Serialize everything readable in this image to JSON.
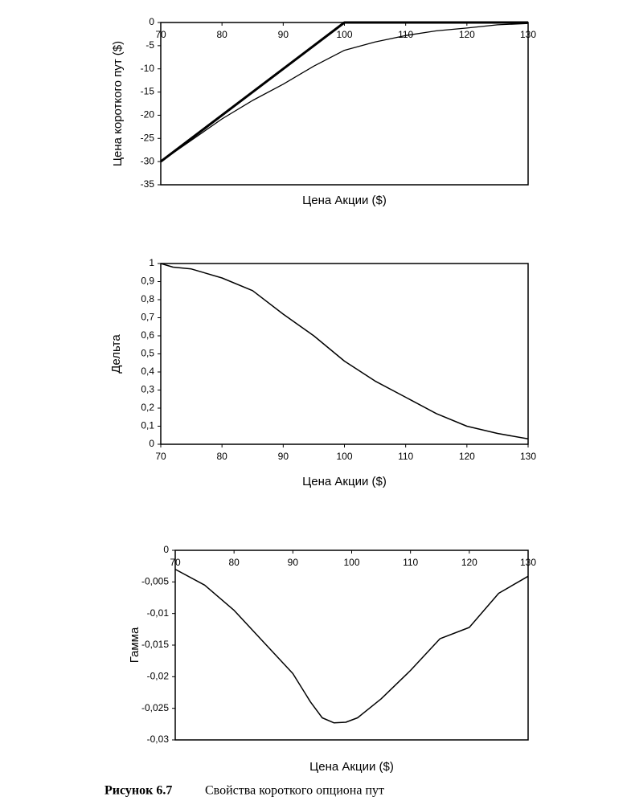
{
  "chart_data": [
    {
      "type": "line",
      "ylabel": "Цена короткого пут ($)",
      "xlabel": "Цена Акции ($)",
      "xlim": [
        70,
        130
      ],
      "xticks": [
        70,
        80,
        90,
        100,
        110,
        120,
        130
      ],
      "xtick_side": "top",
      "ylim": [
        -35,
        0
      ],
      "yticks": [
        0,
        -5,
        -10,
        -15,
        -20,
        -25,
        -30,
        -35
      ],
      "series": [
        {
          "color": "#000000",
          "line_width": 3,
          "x": [
            70,
            100,
            130
          ],
          "values": [
            -30,
            0,
            0
          ]
        },
        {
          "color": "#000000",
          "line_width": 1.3,
          "x": [
            70,
            80,
            85,
            90,
            95,
            100,
            105,
            110,
            115,
            120,
            125,
            130
          ],
          "values": [
            -30,
            -20.8,
            -16.8,
            -13.3,
            -9.4,
            -6,
            -4.2,
            -2.8,
            -1.8,
            -1.2,
            -0.5,
            -0.2
          ]
        }
      ]
    },
    {
      "type": "line",
      "ylabel": "Дельта",
      "xlabel": "Цена Акции ($)",
      "xlim": [
        70,
        130
      ],
      "xticks": [
        70,
        80,
        90,
        100,
        110,
        120,
        130
      ],
      "xtick_side": "bottom",
      "ylim": [
        0,
        1
      ],
      "yticks": [
        0,
        {
          "value": 0.1,
          "label": "0,1"
        },
        {
          "value": 0.2,
          "label": "0,2"
        },
        {
          "value": 0.3,
          "label": "0,3"
        },
        {
          "value": 0.4,
          "label": "0,4"
        },
        {
          "value": 0.5,
          "label": "0,5"
        },
        {
          "value": 0.6,
          "label": "0,6"
        },
        {
          "value": 0.7,
          "label": "0,7"
        },
        {
          "value": 0.8,
          "label": "0,8"
        },
        {
          "value": 0.9,
          "label": "0,9"
        },
        1
      ],
      "series": [
        {
          "color": "#000000",
          "line_width": 1.5,
          "x": [
            70,
            72,
            75,
            80,
            85,
            90,
            95,
            100,
            105,
            110,
            115,
            120,
            125,
            130
          ],
          "values": [
            1,
            0.98,
            0.97,
            0.92,
            0.85,
            0.72,
            0.6,
            0.46,
            0.35,
            0.26,
            0.17,
            0.1,
            0.06,
            0.03
          ]
        }
      ]
    },
    {
      "type": "line",
      "ylabel": "Гамма",
      "xlabel": "Цена Акции ($)",
      "xlim": [
        70,
        130
      ],
      "xticks": [
        70,
        80,
        90,
        100,
        110,
        120,
        130
      ],
      "xtick_side": "top",
      "ylim": [
        -0.03,
        0
      ],
      "yticks": [
        0,
        {
          "value": -0.005,
          "label": "-0,005"
        },
        {
          "value": -0.01,
          "label": "-0,01"
        },
        {
          "value": -0.015,
          "label": "-0,015"
        },
        {
          "value": -0.02,
          "label": "-0,02"
        },
        {
          "value": -0.025,
          "label": "-0,025"
        },
        {
          "value": -0.03,
          "label": "-0,03"
        }
      ],
      "series": [
        {
          "color": "#000000",
          "line_width": 1.5,
          "x": [
            70,
            75,
            80,
            85,
            90,
            93,
            95,
            97,
            99,
            101,
            105,
            110,
            115,
            120,
            125,
            130
          ],
          "values": [
            -0.003,
            -0.0055,
            -0.0095,
            -0.0145,
            -0.0195,
            -0.024,
            -0.0265,
            -0.0273,
            -0.0272,
            -0.0265,
            -0.0235,
            -0.019,
            -0.014,
            -0.0122,
            -0.0068,
            -0.0041
          ]
        }
      ]
    }
  ],
  "figure_label": "Рисунок 6.7",
  "caption": "Свойства короткого опциона пут"
}
